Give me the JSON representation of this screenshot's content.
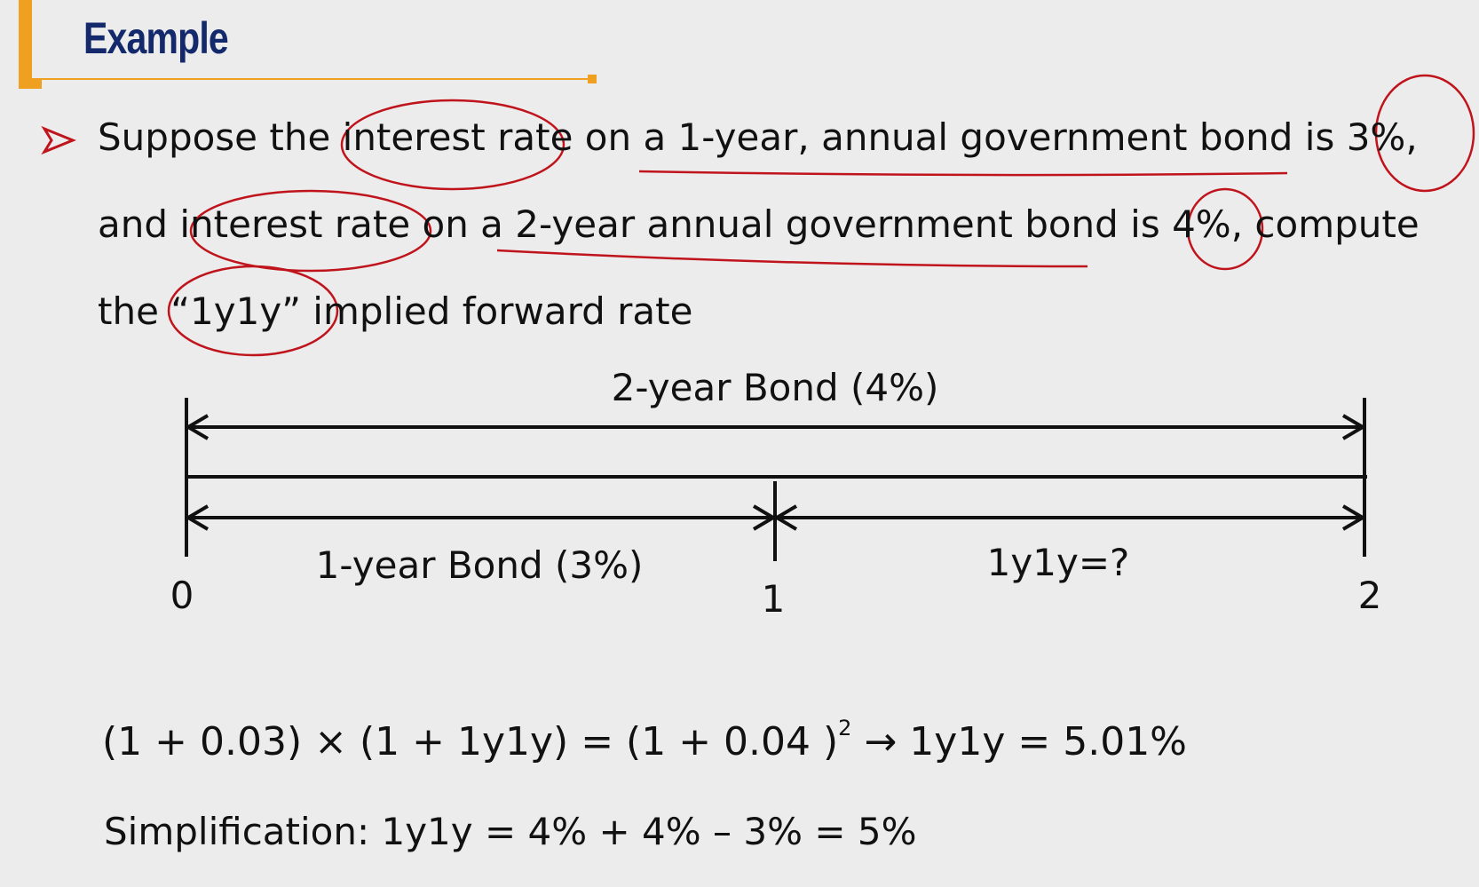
{
  "header": {
    "title": "Example"
  },
  "bullet": {
    "lines": [
      "Suppose the interest rate on a 1-year, annual government bond is 3%,",
      "and interest rate on a 2-year annual government bond is 4%, compute",
      "the “1y1y” implied forward rate"
    ]
  },
  "diagram": {
    "top_label": "2-year Bond (4%)",
    "left_label": "1-year Bond (3%)",
    "right_label": "1y1y=?",
    "ticks": [
      "0",
      "1",
      "2"
    ]
  },
  "equation": {
    "lhs": "(1 + 0.03) × (1 + 1y1y) = (1 + 0.04 )",
    "exponent": "2",
    "result": "→ 1y1y = 5.01%"
  },
  "simplification": "Simplification: 1y1y = 4% + 4% – 3% = 5%"
}
